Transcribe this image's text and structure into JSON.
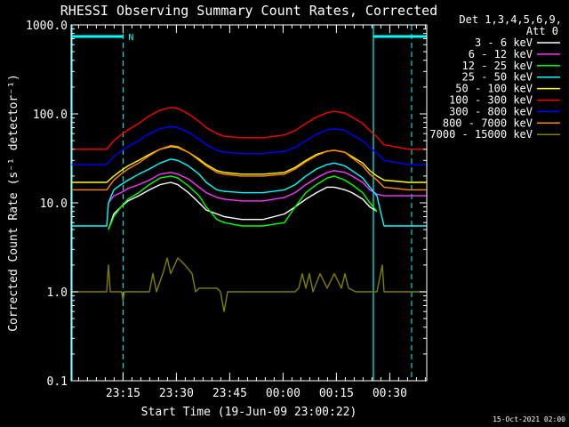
{
  "chart_data": {
    "type": "line",
    "title": "RHESSI Observing Summary Count Rates, Corrected",
    "xlabel": "Start Time (19-Jun-09 23:00:22)",
    "ylabel": "Corrected Count Rate (s⁻¹ detector⁻¹)",
    "yscale": "log",
    "ylim": [
      0.1,
      1000
    ],
    "xlim_minutes": [
      0,
      100
    ],
    "yticks": [
      "0.1",
      "1.0",
      "10.0",
      "100.0",
      "1000.0"
    ],
    "xticks": [
      {
        "t": 14.6,
        "label": "23:15"
      },
      {
        "t": 29.6,
        "label": "23:30"
      },
      {
        "t": 44.6,
        "label": "23:45"
      },
      {
        "t": 59.6,
        "label": "00:00"
      },
      {
        "t": 74.6,
        "label": "00:15"
      },
      {
        "t": 89.6,
        "label": "00:30"
      }
    ],
    "legend_header": [
      "Det 1,3,4,5,6,9,",
      "Att 0"
    ],
    "legend_position": "right",
    "grid": false,
    "series": [
      {
        "name": "3 - 6 keV",
        "color": "#ffffff",
        "x": [
          10.5,
          12,
          14,
          16,
          19,
          22,
          25,
          28,
          30,
          33,
          36,
          38,
          41,
          43,
          48,
          54,
          60,
          63,
          66,
          69,
          72,
          74,
          77,
          79,
          82,
          84,
          86
        ],
        "y": [
          5,
          7.5,
          9,
          10.5,
          12,
          14,
          16,
          17,
          16,
          13,
          10,
          8.3,
          7.5,
          7,
          6.5,
          6.5,
          7.5,
          9,
          11,
          13,
          15,
          15,
          14,
          13,
          11,
          9,
          8
        ]
      },
      {
        "name": "6 - 12 keV",
        "color": "#ff33ff",
        "x": [
          10.5,
          12,
          14,
          16,
          19,
          22,
          25,
          28,
          30,
          33,
          36,
          38,
          41,
          43,
          48,
          54,
          60,
          63,
          66,
          69,
          72,
          74,
          77,
          79,
          82,
          84,
          86,
          88,
          95,
          100
        ],
        "y": [
          10,
          12,
          13,
          14.5,
          16,
          18,
          21,
          22,
          21,
          18.5,
          15,
          13,
          11.5,
          11,
          10.5,
          10.5,
          11.5,
          13,
          16,
          19,
          22,
          23,
          22,
          20,
          17,
          14,
          12.5,
          12,
          12,
          12
        ]
      },
      {
        "name": "12 - 25 keV",
        "color": "#00ff00",
        "x": [
          10.5,
          12,
          14,
          16,
          19,
          22,
          25,
          28,
          30,
          33,
          36,
          38,
          41,
          43,
          48,
          54,
          60,
          63,
          66,
          69,
          72,
          74,
          77,
          79,
          82,
          84,
          86
        ],
        "y": [
          5,
          7,
          9,
          11,
          13,
          16,
          19,
          20,
          19,
          15.5,
          12,
          9,
          6.5,
          6,
          5.5,
          5.5,
          6,
          9,
          13,
          16,
          19,
          20,
          18,
          16,
          13,
          10,
          8
        ]
      },
      {
        "name": "25 - 50 keV",
        "color": "#00ffff",
        "x": [
          0,
          10,
          10.5,
          12,
          14,
          16,
          19,
          22,
          25,
          28,
          30,
          33,
          36,
          38,
          41,
          43,
          48,
          54,
          60,
          63,
          66,
          69,
          72,
          74,
          77,
          79,
          82,
          84,
          86,
          87,
          88,
          95,
          100
        ],
        "y": [
          5.5,
          5.5,
          10,
          14,
          16,
          18,
          21,
          24,
          28,
          31,
          30,
          26,
          21,
          17,
          14,
          13.5,
          13,
          13,
          14,
          16,
          20,
          24,
          27,
          28,
          26,
          23,
          19,
          15,
          12,
          8,
          5.5,
          5.5,
          5.5
        ]
      },
      {
        "name": "50 - 100 keV",
        "color": "#ffff00",
        "x": [
          0,
          10,
          12,
          14,
          16,
          19,
          22,
          25,
          28,
          30,
          33,
          36,
          38,
          41,
          43,
          48,
          54,
          60,
          63,
          66,
          69,
          72,
          74,
          77,
          79,
          82,
          84,
          86,
          88,
          95,
          100
        ],
        "y": [
          17,
          17,
          20,
          23,
          26,
          30,
          35,
          40,
          43,
          42,
          37,
          31,
          27,
          23,
          22,
          21,
          21,
          22,
          25,
          30,
          35,
          38,
          39,
          37,
          33,
          28,
          23,
          20,
          18,
          17,
          17
        ]
      },
      {
        "name": "100 - 300 keV",
        "color": "#ff0000",
        "x": [
          0,
          10,
          12,
          14,
          16,
          19,
          22,
          25,
          28,
          30,
          33,
          36,
          38,
          41,
          43,
          48,
          54,
          60,
          63,
          66,
          69,
          72,
          74,
          77,
          79,
          82,
          84,
          86,
          88,
          95,
          100
        ],
        "y": [
          40,
          40,
          50,
          58,
          66,
          78,
          95,
          110,
          118,
          115,
          100,
          82,
          70,
          60,
          56,
          54,
          54,
          58,
          65,
          78,
          92,
          103,
          107,
          102,
          92,
          78,
          65,
          55,
          45,
          40,
          40
        ]
      },
      {
        "name": "300 - 800 keV",
        "color": "#0000ff",
        "x": [
          0,
          10,
          12,
          14,
          16,
          19,
          22,
          25,
          28,
          30,
          33,
          36,
          38,
          41,
          43,
          48,
          54,
          60,
          63,
          66,
          69,
          72,
          74,
          77,
          79,
          82,
          84,
          86,
          88,
          95,
          100
        ],
        "y": [
          27,
          27,
          33,
          38,
          43,
          50,
          60,
          68,
          72,
          70,
          62,
          52,
          45,
          39,
          37,
          36,
          36,
          38,
          42,
          50,
          59,
          66,
          68,
          65,
          58,
          50,
          42,
          36,
          30,
          27,
          27
        ]
      },
      {
        "name": "800 - 7000 keV",
        "color": "#ff8800",
        "x": [
          0,
          10,
          12,
          14,
          16,
          19,
          22,
          25,
          28,
          30,
          33,
          36,
          38,
          41,
          43,
          48,
          54,
          60,
          63,
          66,
          69,
          72,
          74,
          77,
          79,
          82,
          84,
          86,
          88,
          95,
          100
        ],
        "y": [
          14,
          14,
          18,
          21,
          24,
          28,
          34,
          40,
          44,
          43,
          37,
          30,
          26,
          22,
          21,
          20,
          20,
          21,
          24,
          29,
          34,
          38,
          39,
          37,
          32,
          26,
          21,
          18,
          15,
          14,
          14
        ]
      },
      {
        "name": "7000 - 15000 keV",
        "color": "#808000",
        "x": [
          0,
          10,
          10.5,
          11,
          14.2,
          14.6,
          15,
          16,
          18,
          20,
          22,
          23,
          24,
          26,
          27,
          28,
          30,
          32,
          34,
          35,
          36,
          38,
          40,
          41,
          42,
          43,
          44,
          50,
          55,
          60,
          63,
          64,
          65,
          66,
          67,
          68,
          70,
          72,
          74,
          76,
          77,
          78,
          80,
          84,
          86,
          87.5,
          88,
          95,
          100
        ],
        "y": [
          1,
          1,
          2,
          1,
          1,
          0.8,
          1,
          1,
          1,
          1,
          1,
          1.6,
          1,
          1.7,
          2.4,
          1.6,
          2.4,
          2,
          1.6,
          1,
          1.1,
          1.1,
          1.1,
          1.1,
          1,
          0.6,
          1,
          1,
          1,
          1,
          1,
          1.1,
          1.6,
          1.1,
          1.6,
          1,
          1.6,
          1.1,
          1.6,
          1.1,
          1.6,
          1.1,
          1,
          1,
          1,
          2,
          1,
          1,
          1
        ]
      }
    ],
    "attenuator_markers": [
      {
        "t": 0,
        "label": ""
      },
      {
        "t": 85.0,
        "label": ""
      }
    ],
    "saa_markers": [
      {
        "start": 0,
        "end": 14.6,
        "label": "N"
      },
      {
        "start": 85.0,
        "end": 100,
        "label": ""
      }
    ],
    "footer_date": "15-Oct-2021 02:00"
  },
  "colors": {
    "background": "#000000",
    "axis": "#ffffff",
    "marker": "#00ffff"
  }
}
